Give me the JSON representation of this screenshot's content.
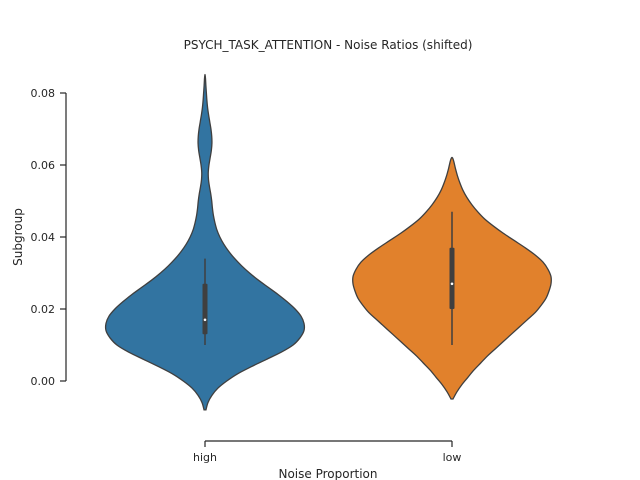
{
  "chart_data": {
    "type": "violin",
    "title": "PSYCH_TASK_ATTENTION - Noise Ratios (shifted)",
    "xlabel": "Noise Proportion",
    "ylabel": "Subgroup",
    "categories": [
      "high",
      "low"
    ],
    "ylim": [
      -0.008,
      0.085
    ],
    "yticks": [
      "0.00",
      "0.02",
      "0.04",
      "0.06",
      "0.08"
    ],
    "grid": false,
    "legend": "none",
    "series": [
      {
        "category": "high",
        "color": "#3274a1",
        "min": 0.01,
        "q1": 0.013,
        "median": 0.017,
        "q3": 0.027,
        "max": 0.034,
        "density": [
          [
            -0.008,
            0.01
          ],
          [
            -0.006,
            0.03
          ],
          [
            -0.004,
            0.07
          ],
          [
            -0.002,
            0.13
          ],
          [
            0.0,
            0.22
          ],
          [
            0.002,
            0.33
          ],
          [
            0.004,
            0.47
          ],
          [
            0.006,
            0.62
          ],
          [
            0.008,
            0.77
          ],
          [
            0.01,
            0.89
          ],
          [
            0.012,
            0.96
          ],
          [
            0.014,
            1.0
          ],
          [
            0.016,
            1.0
          ],
          [
            0.018,
            0.97
          ],
          [
            0.02,
            0.91
          ],
          [
            0.022,
            0.83
          ],
          [
            0.024,
            0.74
          ],
          [
            0.026,
            0.64
          ],
          [
            0.028,
            0.54
          ],
          [
            0.03,
            0.45
          ],
          [
            0.032,
            0.37
          ],
          [
            0.034,
            0.3
          ],
          [
            0.036,
            0.24
          ],
          [
            0.038,
            0.19
          ],
          [
            0.04,
            0.15
          ],
          [
            0.042,
            0.12
          ],
          [
            0.044,
            0.1
          ],
          [
            0.046,
            0.085
          ],
          [
            0.048,
            0.075
          ],
          [
            0.05,
            0.068
          ],
          [
            0.052,
            0.058
          ],
          [
            0.054,
            0.045
          ],
          [
            0.056,
            0.035
          ],
          [
            0.058,
            0.033
          ],
          [
            0.06,
            0.04
          ],
          [
            0.062,
            0.052
          ],
          [
            0.064,
            0.064
          ],
          [
            0.066,
            0.07
          ],
          [
            0.068,
            0.068
          ],
          [
            0.07,
            0.06
          ],
          [
            0.072,
            0.048
          ],
          [
            0.074,
            0.036
          ],
          [
            0.076,
            0.026
          ],
          [
            0.078,
            0.019
          ],
          [
            0.08,
            0.014
          ],
          [
            0.082,
            0.009
          ],
          [
            0.084,
            0.005
          ],
          [
            0.085,
            0.001
          ]
        ]
      },
      {
        "category": "low",
        "color": "#e1812c",
        "min": 0.01,
        "q1": 0.02,
        "median": 0.027,
        "q3": 0.037,
        "max": 0.047,
        "density": [
          [
            -0.005,
            0.01
          ],
          [
            -0.003,
            0.05
          ],
          [
            -0.001,
            0.1
          ],
          [
            0.001,
            0.16
          ],
          [
            0.003,
            0.22
          ],
          [
            0.005,
            0.29
          ],
          [
            0.007,
            0.36
          ],
          [
            0.009,
            0.44
          ],
          [
            0.011,
            0.52
          ],
          [
            0.013,
            0.6
          ],
          [
            0.015,
            0.68
          ],
          [
            0.017,
            0.76
          ],
          [
            0.019,
            0.84
          ],
          [
            0.021,
            0.9
          ],
          [
            0.023,
            0.95
          ],
          [
            0.025,
            0.98
          ],
          [
            0.027,
            1.0
          ],
          [
            0.029,
            1.0
          ],
          [
            0.031,
            0.97
          ],
          [
            0.033,
            0.92
          ],
          [
            0.035,
            0.84
          ],
          [
            0.037,
            0.74
          ],
          [
            0.039,
            0.63
          ],
          [
            0.041,
            0.52
          ],
          [
            0.043,
            0.42
          ],
          [
            0.045,
            0.33
          ],
          [
            0.047,
            0.26
          ],
          [
            0.049,
            0.2
          ],
          [
            0.051,
            0.15
          ],
          [
            0.053,
            0.11
          ],
          [
            0.055,
            0.08
          ],
          [
            0.057,
            0.055
          ],
          [
            0.059,
            0.035
          ],
          [
            0.061,
            0.018
          ],
          [
            0.062,
            0.005
          ]
        ]
      }
    ]
  }
}
